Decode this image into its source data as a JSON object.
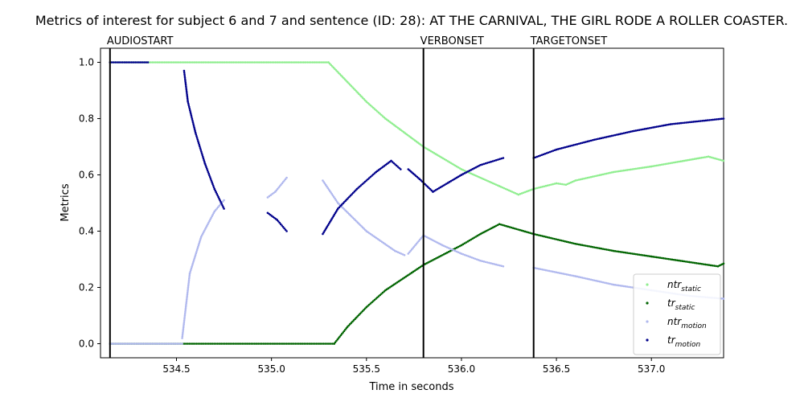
{
  "chart_data": {
    "type": "scatter",
    "title": "Metrics of interest for subject 6 and 7 and sentence (ID: 28): AT THE CARNIVAL, THE GIRL RODE A ROLLER COASTER.",
    "xlabel": "Time in seconds",
    "ylabel": "Metrics",
    "xlim": [
      534.1,
      537.38
    ],
    "ylim": [
      -0.05,
      1.05
    ],
    "xticks": [
      "534.5",
      "535.0",
      "535.5",
      "536.0",
      "536.5",
      "537.0"
    ],
    "yticks": [
      "0.0",
      "0.2",
      "0.4",
      "0.6",
      "0.8",
      "1.0"
    ],
    "events": [
      {
        "label": "AUDIOSTART",
        "x": 534.15
      },
      {
        "label": "VERBONSET",
        "x": 535.8
      },
      {
        "label": "TARGETONSET",
        "x": 536.38
      }
    ],
    "legend_position": "lower-right",
    "series": [
      {
        "name": "ntr_static",
        "legend_base": "ntr",
        "legend_sub": "static",
        "color": "#90ee90",
        "segments": [
          [
            [
              534.15,
              1.0
            ],
            [
              535.3,
              1.0
            ],
            [
              535.4,
              0.93
            ],
            [
              535.5,
              0.86
            ],
            [
              535.6,
              0.8
            ],
            [
              535.8,
              0.7
            ],
            [
              536.0,
              0.62
            ],
            [
              536.2,
              0.56
            ],
            [
              536.3,
              0.53
            ],
            [
              536.38,
              0.55
            ],
            [
              536.5,
              0.57
            ],
            [
              536.55,
              0.565
            ],
            [
              536.6,
              0.58
            ],
            [
              536.8,
              0.61
            ],
            [
              537.0,
              0.63
            ],
            [
              537.3,
              0.665
            ],
            [
              537.38,
              0.65
            ]
          ]
        ]
      },
      {
        "name": "tr_static",
        "legend_base": "tr",
        "legend_sub": "static",
        "color": "#006400",
        "segments": [
          [
            [
              534.15,
              0.0
            ],
            [
              535.33,
              0.0
            ],
            [
              535.4,
              0.06
            ],
            [
              535.5,
              0.13
            ],
            [
              535.6,
              0.19
            ],
            [
              535.8,
              0.28
            ],
            [
              536.0,
              0.35
            ],
            [
              536.1,
              0.39
            ],
            [
              536.2,
              0.425
            ],
            [
              536.38,
              0.39
            ],
            [
              536.6,
              0.355
            ],
            [
              536.8,
              0.33
            ],
            [
              537.0,
              0.31
            ],
            [
              537.2,
              0.29
            ],
            [
              537.35,
              0.275
            ],
            [
              537.38,
              0.285
            ]
          ]
        ]
      },
      {
        "name": "ntr_motion",
        "legend_base": "ntr",
        "legend_sub": "motion",
        "color": "#b0b8ee",
        "segments": [
          [
            [
              534.15,
              0.0
            ],
            [
              534.53,
              0.0
            ]
          ],
          [
            [
              534.53,
              0.02
            ],
            [
              534.57,
              0.25
            ],
            [
              534.63,
              0.38
            ],
            [
              534.7,
              0.47
            ],
            [
              534.75,
              0.51
            ]
          ],
          [
            [
              534.98,
              0.52
            ],
            [
              535.02,
              0.54
            ],
            [
              535.08,
              0.59
            ]
          ],
          [
            [
              535.27,
              0.58
            ],
            [
              535.35,
              0.5
            ],
            [
              535.5,
              0.4
            ],
            [
              535.65,
              0.33
            ],
            [
              535.7,
              0.315
            ]
          ],
          [
            [
              535.72,
              0.32
            ],
            [
              535.8,
              0.385
            ],
            [
              535.9,
              0.35
            ],
            [
              536.0,
              0.32
            ],
            [
              536.1,
              0.295
            ],
            [
              536.22,
              0.275
            ]
          ],
          [
            [
              536.38,
              0.27
            ],
            [
              536.6,
              0.24
            ],
            [
              536.8,
              0.21
            ],
            [
              537.0,
              0.19
            ],
            [
              537.2,
              0.17
            ],
            [
              537.38,
              0.16
            ]
          ]
        ]
      },
      {
        "name": "tr_motion",
        "legend_base": "tr",
        "legend_sub": "motion",
        "color": "#00008b",
        "segments": [
          [
            [
              534.15,
              1.0
            ],
            [
              534.35,
              1.0
            ]
          ],
          [
            [
              534.54,
              0.97
            ],
            [
              534.56,
              0.86
            ],
            [
              534.6,
              0.75
            ],
            [
              534.65,
              0.64
            ],
            [
              534.7,
              0.55
            ],
            [
              534.75,
              0.48
            ]
          ],
          [
            [
              534.98,
              0.465
            ],
            [
              535.03,
              0.44
            ],
            [
              535.08,
              0.4
            ]
          ],
          [
            [
              535.27,
              0.39
            ],
            [
              535.35,
              0.48
            ],
            [
              535.45,
              0.55
            ],
            [
              535.55,
              0.61
            ],
            [
              535.63,
              0.65
            ],
            [
              535.68,
              0.62
            ]
          ],
          [
            [
              535.72,
              0.62
            ],
            [
              535.78,
              0.585
            ],
            [
              535.85,
              0.54
            ],
            [
              536.0,
              0.6
            ],
            [
              536.1,
              0.635
            ],
            [
              536.22,
              0.66
            ]
          ],
          [
            [
              536.38,
              0.66
            ],
            [
              536.5,
              0.69
            ],
            [
              536.7,
              0.725
            ],
            [
              536.9,
              0.755
            ],
            [
              537.1,
              0.78
            ],
            [
              537.38,
              0.8
            ]
          ]
        ]
      }
    ]
  }
}
